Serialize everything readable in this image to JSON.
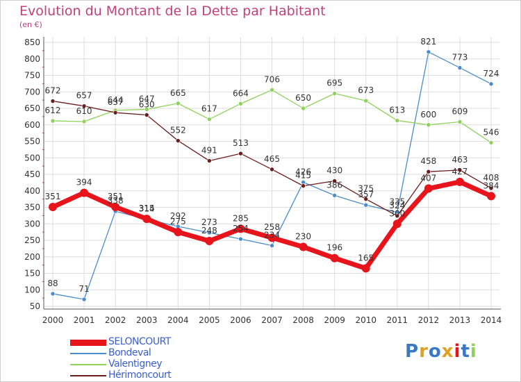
{
  "title": "Evolution du Montant de la Dette par Habitant",
  "subtitle": "(en €)",
  "logo": "Proxiti",
  "colors": {
    "title": "#c0407a",
    "axis_text": "#333333",
    "legend_text": "#3a5fcd",
    "grid": "#dddddd"
  },
  "chart_data": {
    "type": "line",
    "title": "Evolution du Montant de la Dette par Habitant",
    "subtitle": "(en €)",
    "x": [
      "2000",
      "2001",
      "2002",
      "2003",
      "2004",
      "2005",
      "2006",
      "2007",
      "2008",
      "2009",
      "2010",
      "2011",
      "2012",
      "2013",
      "2014"
    ],
    "ylim": [
      50,
      850
    ],
    "yticks": [
      50,
      100,
      150,
      200,
      250,
      300,
      350,
      400,
      450,
      500,
      550,
      600,
      650,
      700,
      750,
      800,
      850
    ],
    "grid": true,
    "legend_position": "bottom-left",
    "series": [
      {
        "name": "SELONCOURT",
        "color": "#e8141b",
        "values": [
          351,
          394,
          351,
          315,
          275,
          248,
          285,
          258,
          230,
          196,
          165,
          300,
          407,
          427,
          384
        ]
      },
      {
        "name": "Bondeval",
        "color": "#4a8cc9",
        "values": [
          88,
          71,
          338,
          314,
          292,
          273,
          254,
          234,
          426,
          386,
          357,
          335,
          821,
          773,
          724
        ]
      },
      {
        "name": "Valentigney",
        "color": "#8ed25a",
        "values": [
          612,
          610,
          644,
          647,
          665,
          617,
          664,
          706,
          650,
          695,
          673,
          613,
          600,
          609,
          546
        ]
      },
      {
        "name": "Hérimoncourt",
        "color": "#6b1d1d",
        "values": [
          672,
          657,
          637,
          630,
          552,
          491,
          513,
          465,
          415,
          430,
          375,
          324,
          458,
          463,
          408
        ]
      }
    ]
  }
}
